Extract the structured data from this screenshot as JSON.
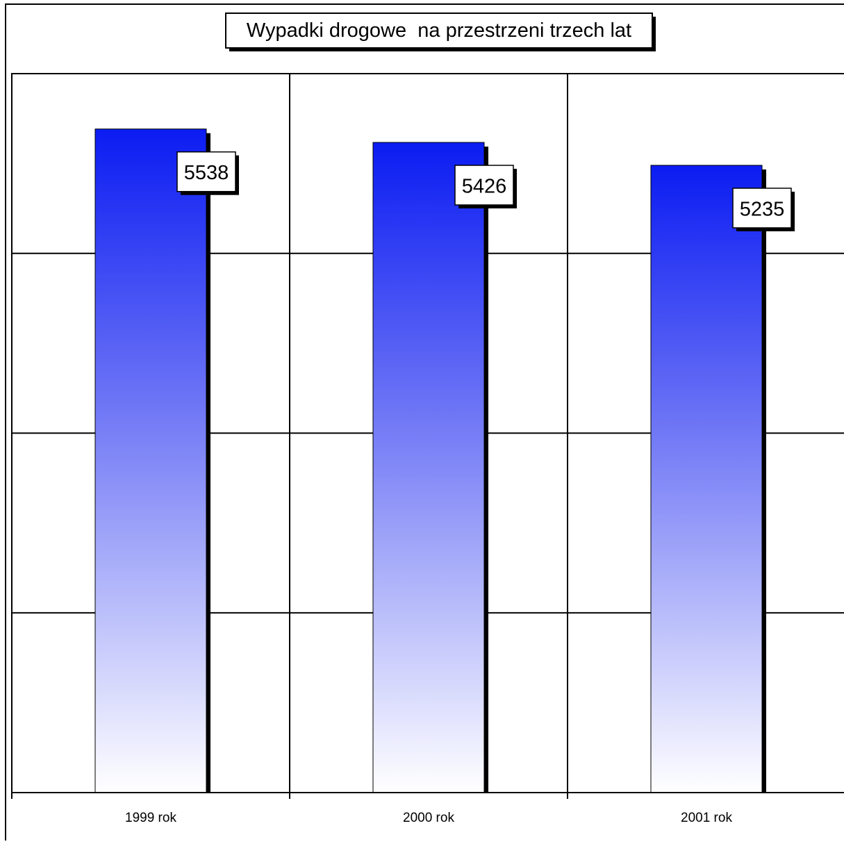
{
  "chart_data": {
    "type": "bar",
    "title": "Wypadki drogowe  na przestrzeni trzech lat",
    "categories": [
      "1999 rok",
      "2000 rok",
      "2001 rok"
    ],
    "values": [
      5538,
      5426,
      5235
    ],
    "data_labels": [
      "5538",
      "5426",
      "5235"
    ],
    "xlabel": "",
    "ylabel": "",
    "ylim": [
      0,
      6000
    ],
    "grid": true,
    "legend": "none",
    "colors": {
      "bar_top": "#0b1cf2",
      "bar_bottom": "#ffffff",
      "shadow": "#000000",
      "grid": "#000000"
    }
  }
}
